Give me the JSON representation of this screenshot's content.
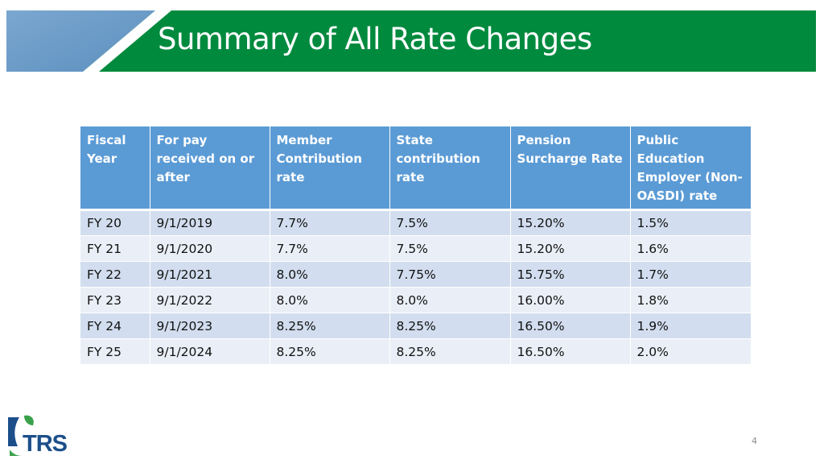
{
  "slide": {
    "title": "Summary of All Rate Changes",
    "page_number": "4",
    "logo_text": "TRS"
  },
  "colors": {
    "banner_green": "#008a3e",
    "banner_blue": "#6a9bc9",
    "header_blue": "#5b9bd5",
    "row_dark": "#d2deef",
    "row_light": "#eaeff7",
    "logo_blue": "#1c4f8a",
    "logo_green": "#3aa14a"
  },
  "table": {
    "headers": [
      "Fiscal Year",
      "For pay received on or after",
      "Member Contribution rate",
      "State contribution rate",
      "Pension Surcharge Rate",
      "Public Education Employer (Non-OASDI) rate"
    ],
    "rows": [
      [
        "FY 20",
        "9/1/2019",
        "7.7%",
        "7.5%",
        "15.20%",
        "1.5%"
      ],
      [
        "FY 21",
        "9/1/2020",
        "7.7%",
        "7.5%",
        "15.20%",
        "1.6%"
      ],
      [
        "FY 22",
        "9/1/2021",
        "8.0%",
        "7.75%",
        "15.75%",
        "1.7%"
      ],
      [
        "FY 23",
        "9/1/2022",
        "8.0%",
        "8.0%",
        "16.00%",
        "1.8%"
      ],
      [
        "FY 24",
        "9/1/2023",
        "8.25%",
        "8.25%",
        "16.50%",
        "1.9%"
      ],
      [
        "FY 25",
        "9/1/2024",
        "8.25%",
        "8.25%",
        "16.50%",
        "2.0%"
      ]
    ]
  }
}
